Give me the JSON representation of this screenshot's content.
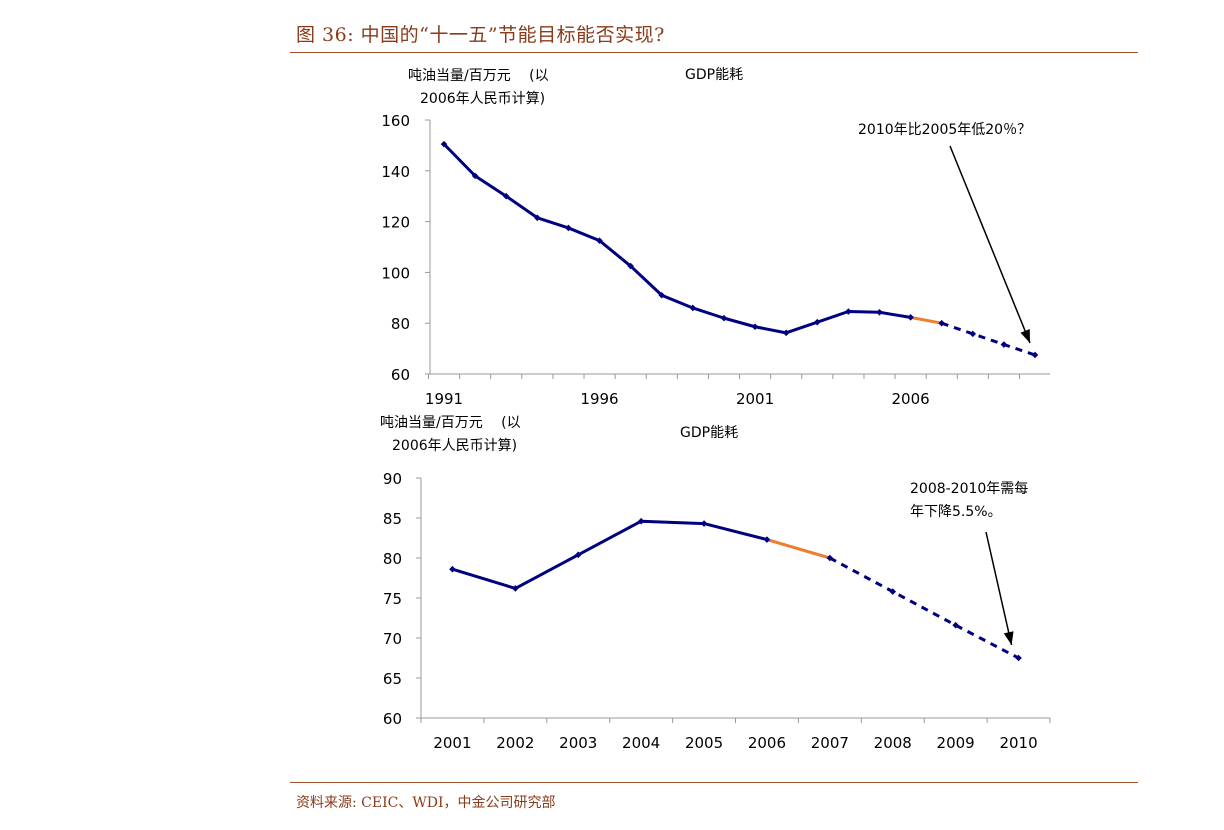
{
  "figure": {
    "title": "图 36: 中国的“十一五”节能目标能否实现?",
    "source": "资料来源: CEIC、WDI，中金公司研究部"
  },
  "chart_data": [
    {
      "type": "line",
      "title": "GDP能耗",
      "ylabel": [
        "吨油当量/百万元　 (以",
        "2006年人民币计算)"
      ],
      "ylim": [
        60,
        160
      ],
      "yticks": [
        60,
        80,
        100,
        120,
        140,
        160
      ],
      "xlim": [
        1991,
        2010
      ],
      "xtick_labels": [
        "1991",
        "1996",
        "2001",
        "2006"
      ],
      "x": [
        1991,
        1992,
        1993,
        1994,
        1995,
        1996,
        1997,
        1998,
        1999,
        2000,
        2001,
        2002,
        2003,
        2004,
        2005,
        2006,
        2007,
        2008,
        2009,
        2010
      ],
      "values": [
        150.5,
        138.0,
        130.0,
        121.5,
        117.5,
        112.5,
        102.5,
        91.0,
        86.0,
        82.0,
        78.6,
        76.2,
        80.4,
        84.6,
        84.3,
        82.3,
        80.0,
        75.8,
        71.6,
        67.5
      ],
      "segments": [
        {
          "style": "solid",
          "color": "#000080",
          "from": 1991,
          "to": 2006
        },
        {
          "style": "solid",
          "color": "#ed7d31",
          "from": 2006,
          "to": 2007
        },
        {
          "style": "dashed",
          "color": "#000080",
          "from": 2007,
          "to": 2010
        }
      ],
      "annotation": {
        "text": "2010年比2005年低20％？",
        "points_to": 2010
      }
    },
    {
      "type": "line",
      "title": "GDP能耗",
      "ylabel": [
        "吨油当量/百万元　 (以",
        "2006年人民币计算)"
      ],
      "ylim": [
        60,
        90
      ],
      "yticks": [
        60,
        65,
        70,
        75,
        80,
        85,
        90
      ],
      "categories": [
        "2001",
        "2002",
        "2003",
        "2004",
        "2005",
        "2006",
        "2007",
        "2008",
        "2009",
        "2010"
      ],
      "values": [
        78.6,
        76.2,
        80.4,
        84.6,
        84.3,
        82.3,
        80.0,
        75.8,
        71.6,
        67.5
      ],
      "segments": [
        {
          "style": "solid",
          "color": "#000080",
          "from": 0,
          "to": 5
        },
        {
          "style": "solid",
          "color": "#ed7d31",
          "from": 5,
          "to": 6
        },
        {
          "style": "dashed",
          "color": "#000080",
          "from": 6,
          "to": 9
        }
      ],
      "annotation": {
        "text": [
          "2008-2010年需每",
          "年下降5.5%。"
        ],
        "points_to": 9
      }
    }
  ]
}
